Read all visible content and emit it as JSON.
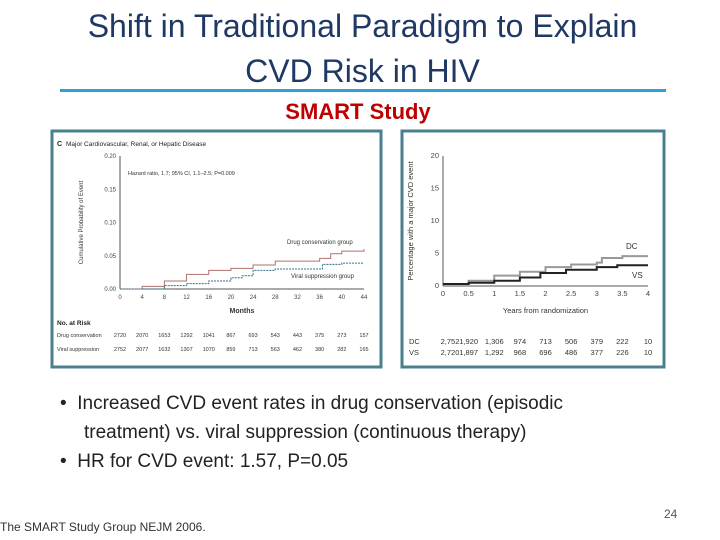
{
  "title": {
    "line1": "Shift in Traditional Paradigm to Explain",
    "line2": "CVD Risk in HIV"
  },
  "subtitle": "SMART Study",
  "bullets": [
    "Increased CVD event rates in drug conservation (episodic",
    "treatment) vs. viral suppression (continuous therapy)",
    "HR for CVD event: 1.57, P=0.05"
  ],
  "footer": "The SMART Study Group NEJM 2006.",
  "page_number": "24",
  "colors": {
    "title": "#1f3864",
    "subtitle": "#c00000",
    "rule": "#2ea0d6",
    "panel_border": "#4a7f8e"
  },
  "chart_data": [
    {
      "type": "line",
      "panel_label": "C",
      "title": "Major Cardiovascular, Renal, or Hepatic Disease",
      "annotation": "Hazard ratio, 1.7; 95% CI, 1.1–2.5; P=0.009",
      "xlabel": "Months",
      "ylabel": "Cumulative Probability of Event",
      "xlim": [
        0,
        44
      ],
      "ylim": [
        0,
        0.2
      ],
      "xticks": [
        "0",
        "4",
        "8",
        "12",
        "16",
        "20",
        "24",
        "28",
        "32",
        "36",
        "40",
        "44"
      ],
      "yticks": [
        "0.00",
        "0.05",
        "0.10",
        "0.15",
        "0.20"
      ],
      "series": [
        {
          "name": "Drug conservation group",
          "color": "#b0706a",
          "x": [
            0,
            4,
            8,
            12,
            16,
            20,
            24,
            28,
            36,
            38,
            40,
            44
          ],
          "y": [
            0,
            0.004,
            0.012,
            0.022,
            0.028,
            0.031,
            0.036,
            0.042,
            0.046,
            0.053,
            0.057,
            0.06
          ]
        },
        {
          "name": "Viral suppression group",
          "color": "#2f6f8a",
          "x": [
            0,
            8,
            12,
            16,
            20,
            22,
            24,
            28,
            36,
            36.5,
            40,
            44
          ],
          "y": [
            0,
            0.005,
            0.008,
            0.012,
            0.017,
            0.02,
            0.028,
            0.03,
            0.03,
            0.037,
            0.039,
            0.039
          ]
        }
      ],
      "risk_table": {
        "header": "No. at Risk",
        "rows": [
          {
            "label": "Drug conservation",
            "values": [
              "2720",
              "2070",
              "1653",
              "1292",
              "1041",
              "867",
              "693",
              "543",
              "443",
              "375",
              "273",
              "157"
            ]
          },
          {
            "label": "Viral suppression",
            "values": [
              "2752",
              "2077",
              "1632",
              "1307",
              "1070",
              "859",
              "713",
              "563",
              "462",
              "380",
              "282",
              "165"
            ]
          }
        ]
      }
    },
    {
      "type": "line",
      "xlabel": "Years from randomization",
      "ylabel": "Percentage with a major CVD event",
      "xlim": [
        0,
        4
      ],
      "ylim": [
        0,
        20
      ],
      "xticks": [
        "0",
        "0.5",
        "1",
        "1.5",
        "2",
        "2.5",
        "3",
        "3.5",
        "4"
      ],
      "yticks": [
        "0",
        "5",
        "10",
        "15",
        "20"
      ],
      "series": [
        {
          "name": "DC",
          "color": "#999999",
          "x": [
            0,
            0.5,
            1,
            1.5,
            2,
            2.5,
            3,
            3.1,
            3.5,
            4
          ],
          "y": [
            0.3,
            0.8,
            1.6,
            2.2,
            2.9,
            3.3,
            3.6,
            4.3,
            4.6,
            4.6
          ]
        },
        {
          "name": "VS",
          "color": "#222222",
          "x": [
            0,
            0.5,
            1,
            1.5,
            1.9,
            2.4,
            3,
            3.4,
            4
          ],
          "y": [
            0.3,
            0.5,
            0.8,
            1.3,
            2.0,
            2.5,
            2.9,
            3.2,
            3.2
          ]
        }
      ],
      "risk_table": {
        "rows": [
          {
            "label": "DC",
            "values": [
              "2,752",
              "1,920",
              "1,306",
              "974",
              "713",
              "506",
              "379",
              "222",
              "10"
            ]
          },
          {
            "label": "VS",
            "values": [
              "2,720",
              "1,897",
              "1,292",
              "968",
              "696",
              "486",
              "377",
              "226",
              "10"
            ]
          }
        ]
      }
    }
  ]
}
